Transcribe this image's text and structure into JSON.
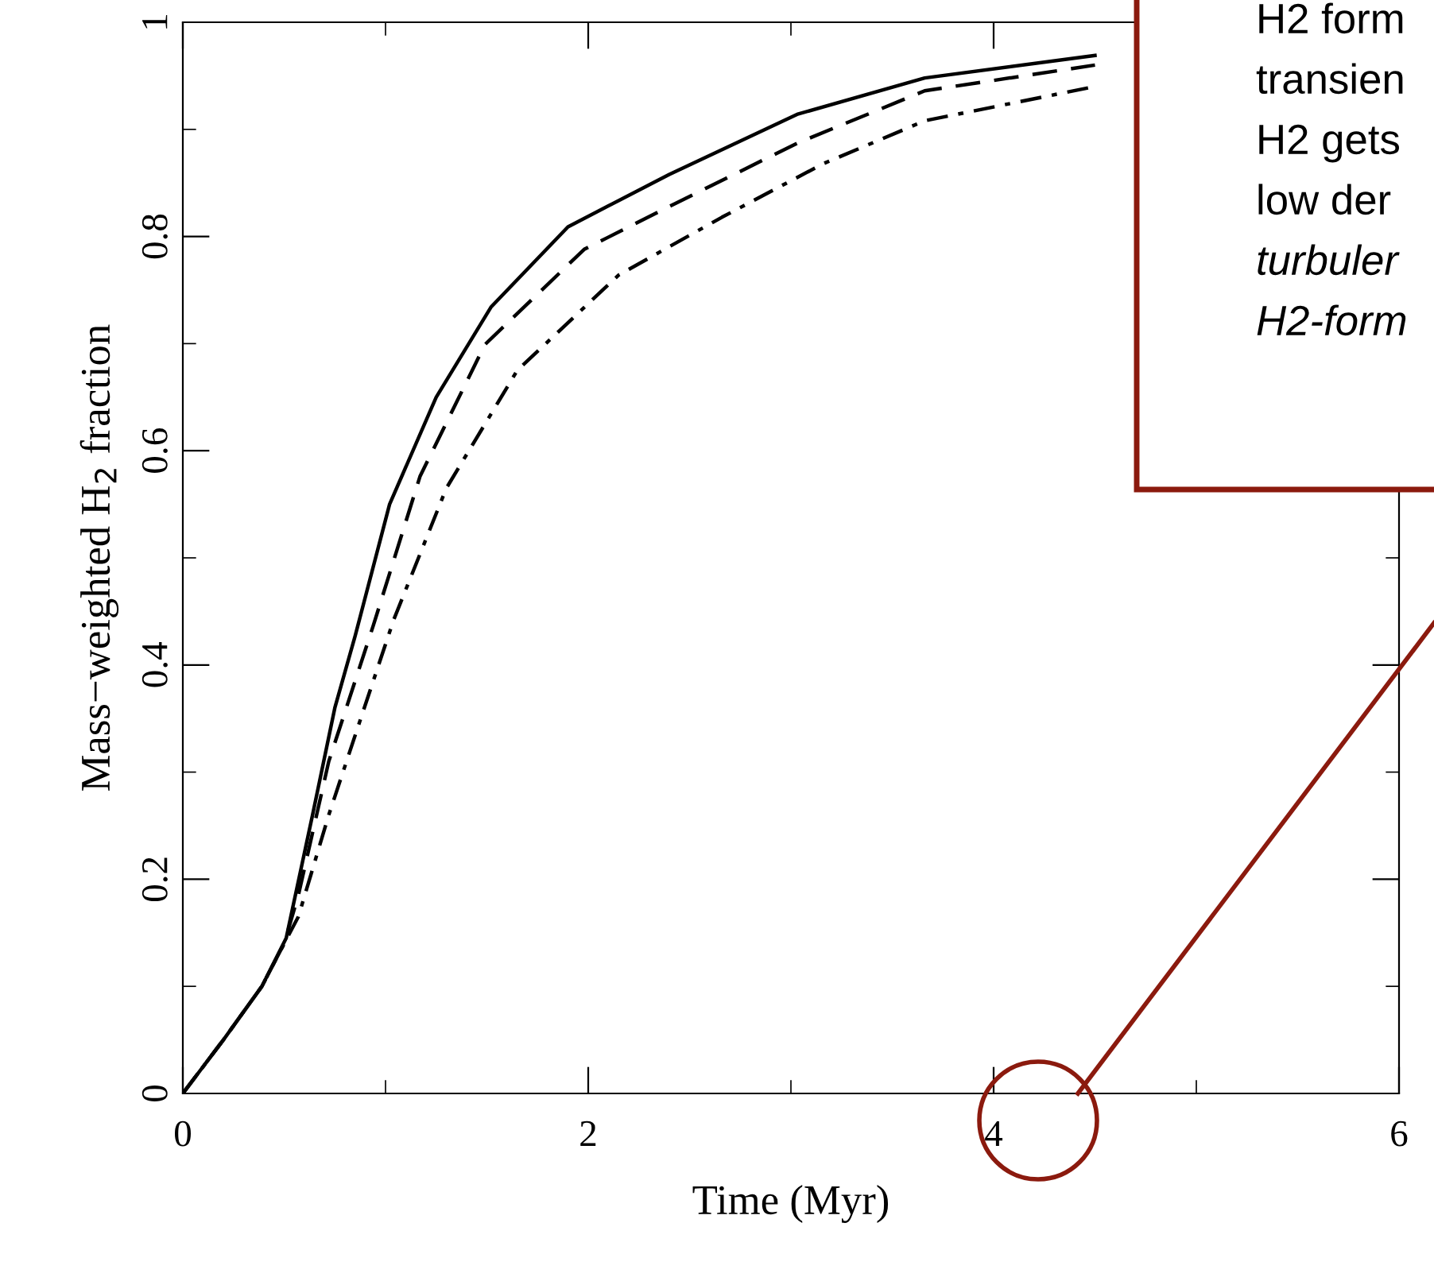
{
  "chart_data": {
    "type": "line",
    "xlabel": "Time (Myr)",
    "ylabel": "Mass−weighted H$_{2}$ fraction",
    "xlim": [
      0,
      6
    ],
    "ylim": [
      0,
      1
    ],
    "xticks": [
      0,
      2,
      4,
      6
    ],
    "yticks": [
      0,
      0.2,
      0.4,
      0.6,
      0.8,
      1
    ],
    "grid": false,
    "legend": false,
    "marker": "none",
    "annotations": [
      "H2 form",
      "transien",
      "H2 gets",
      "low der",
      "turbuler",
      "H2-form"
    ],
    "series": [
      {
        "color": "#000000",
        "line_style": "solid",
        "x": [
          0,
          0.2,
          0.39,
          0.51,
          0.64,
          0.75,
          0.85,
          1.02,
          1.25,
          1.52,
          1.9,
          2.4,
          3.03,
          3.66,
          4.5
        ],
        "values": [
          0,
          0.05,
          0.1,
          0.145,
          0.26,
          0.36,
          0.427,
          0.55,
          0.65,
          0.734,
          0.809,
          0.858,
          0.914,
          0.948,
          0.969
        ]
      },
      {
        "color": "#000000",
        "line_style": "dashed",
        "x": [
          0,
          0.2,
          0.39,
          0.5,
          0.57,
          0.72,
          0.94,
          1.17,
          1.49,
          1.98,
          2.4,
          3.03,
          3.66,
          4.5
        ],
        "values": [
          0,
          0.05,
          0.1,
          0.14,
          0.185,
          0.31,
          0.437,
          0.576,
          0.699,
          0.788,
          0.828,
          0.887,
          0.936,
          0.96
        ]
      },
      {
        "color": "#000000",
        "line_style": "dashdot",
        "x": [
          0,
          0.2,
          0.39,
          0.5,
          0.57,
          0.72,
          0.89,
          1.04,
          1.3,
          1.65,
          2.15,
          2.66,
          3.16,
          3.66,
          4.5
        ],
        "values": [
          0,
          0.05,
          0.1,
          0.14,
          0.165,
          0.26,
          0.357,
          0.442,
          0.565,
          0.675,
          0.764,
          0.818,
          0.868,
          0.908,
          0.94
        ]
      }
    ]
  }
}
